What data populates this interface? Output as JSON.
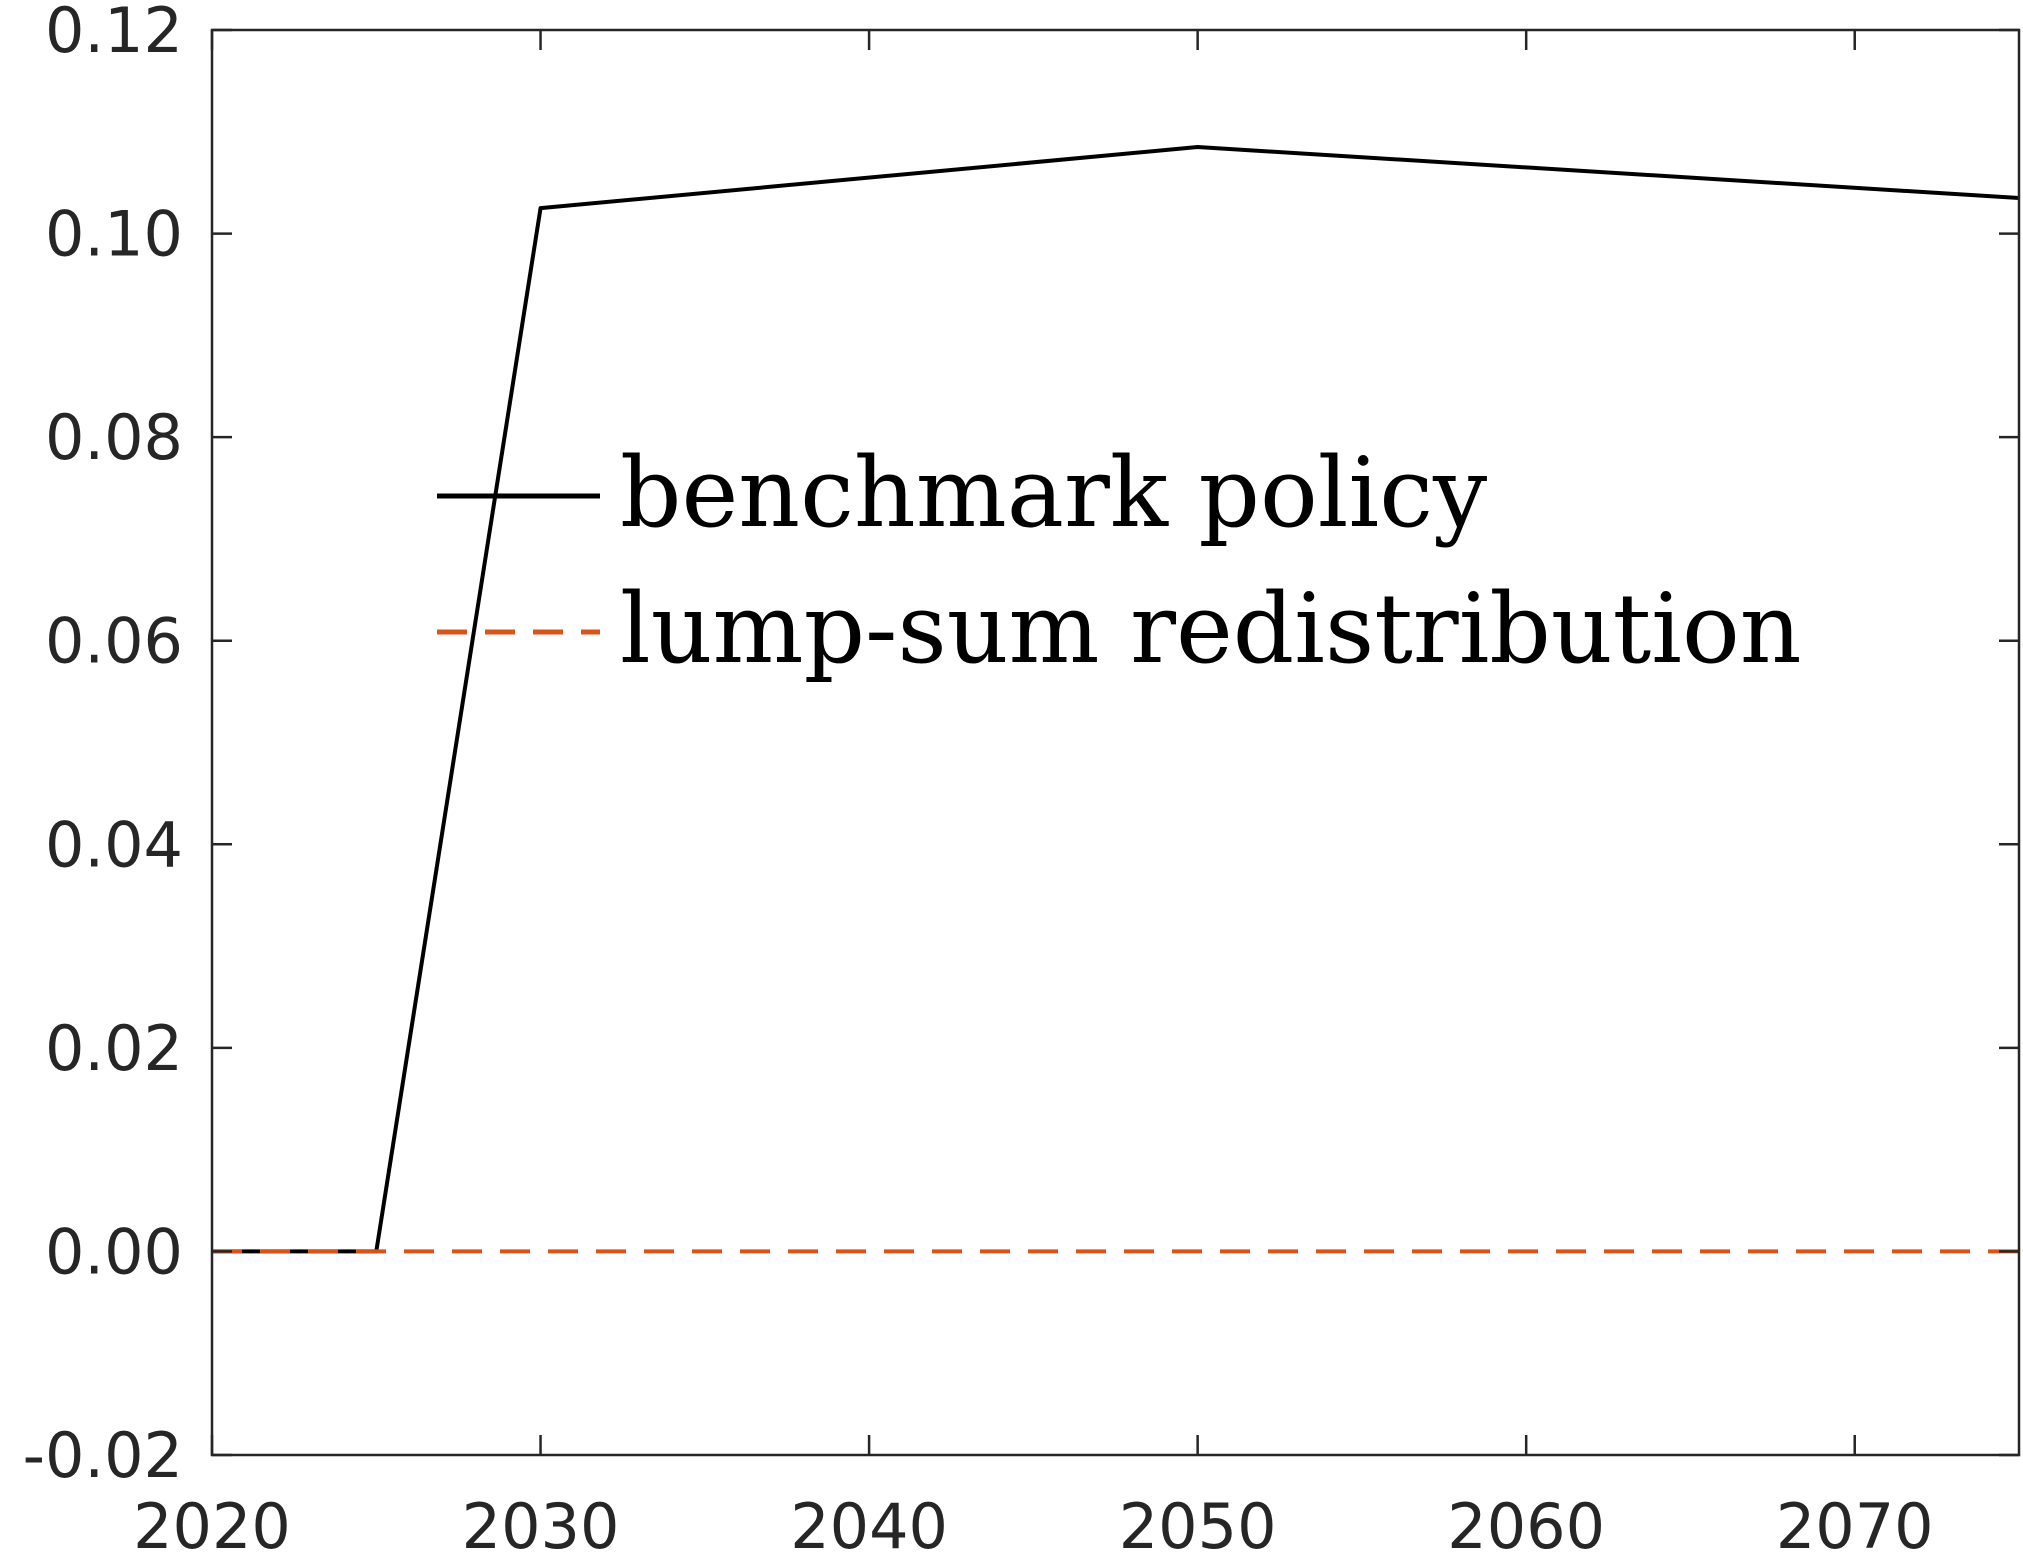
{
  "chart_data": {
    "type": "line",
    "title": "",
    "xlabel": "",
    "ylabel": "",
    "xlim": [
      2020,
      2075
    ],
    "ylim": [
      -0.02,
      0.12
    ],
    "xticks": [
      2020,
      2030,
      2040,
      2050,
      2060,
      2070
    ],
    "xtick_labels": [
      "2020",
      "2030",
      "2040",
      "2050",
      "2060",
      "2070"
    ],
    "yticks": [
      -0.02,
      0.0,
      0.02,
      0.04,
      0.06,
      0.08,
      0.1,
      0.12
    ],
    "ytick_labels": [
      "-0.02",
      "0.00",
      "0.02",
      "0.04",
      "0.06",
      "0.08",
      "0.10",
      "0.12"
    ],
    "grid": false,
    "legend_position": "upper-center",
    "series": [
      {
        "name": "benchmark policy",
        "style": "solid",
        "color": "#000000",
        "x": [
          2020,
          2025,
          2030,
          2050,
          2075
        ],
        "y": [
          0.0,
          0.0,
          0.1025,
          0.1085,
          0.1035
        ]
      },
      {
        "name": "lump-sum redistribution",
        "style": "dashed",
        "color": "#D95319",
        "x": [
          2020,
          2075
        ],
        "y": [
          0.0,
          0.0
        ]
      }
    ]
  }
}
